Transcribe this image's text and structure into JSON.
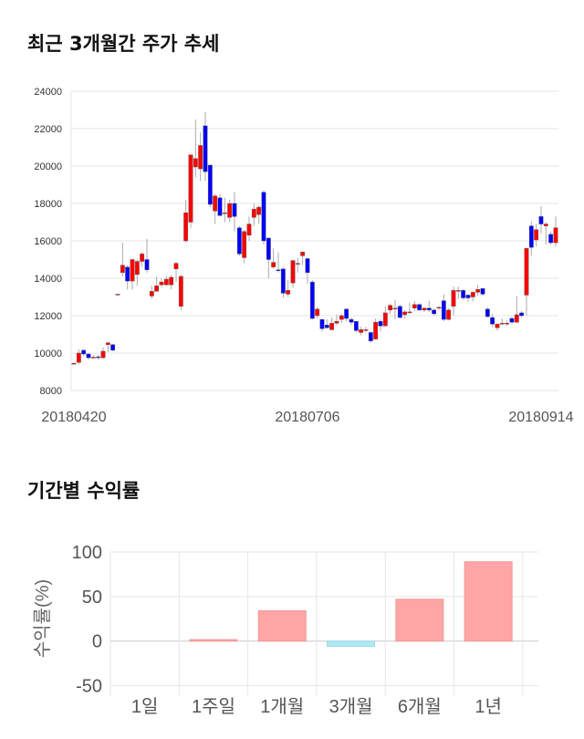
{
  "chart_data": [
    {
      "type": "candlestick",
      "title": "최근 3개월간 주가 추세",
      "ylim": [
        8000,
        24000
      ],
      "yticks": [
        "24000",
        "22000",
        "20000",
        "18000",
        "16000",
        "14000",
        "12000",
        "10000",
        "8000"
      ],
      "xticks": [
        {
          "index": 0,
          "label": "20180420"
        },
        {
          "index": 48,
          "label": "20180706"
        },
        {
          "index": 96,
          "label": "20180914"
        }
      ],
      "colors": {
        "up": "#ff0000",
        "down": "#0000ff",
        "wick": "#aaaaaa",
        "grid": "#e6e6e6"
      },
      "candles_ohlc_note": "each entry: [open, close, high, low]",
      "candles": [
        [
          9450,
          9450,
          9500,
          9400
        ],
        [
          9500,
          10000,
          10200,
          9400
        ],
        [
          10150,
          9950,
          10200,
          9850
        ],
        [
          9950,
          9750,
          10000,
          9650
        ],
        [
          9780,
          9780,
          9900,
          9700
        ],
        [
          9800,
          9780,
          9900,
          9650
        ],
        [
          9750,
          10100,
          10300,
          9700
        ],
        [
          10450,
          10550,
          10600,
          10050
        ],
        [
          10450,
          10150,
          10500,
          10100
        ],
        [
          13150,
          13150,
          13150,
          13150
        ],
        [
          14300,
          14700,
          15900,
          14100
        ],
        [
          14600,
          13850,
          14700,
          13400
        ],
        [
          13850,
          15000,
          15050,
          13400
        ],
        [
          14200,
          14900,
          15000,
          13600
        ],
        [
          14900,
          15300,
          15400,
          14600
        ],
        [
          15000,
          14450,
          16100,
          14300
        ],
        [
          13050,
          13300,
          13600,
          12900
        ],
        [
          13300,
          13600,
          14100,
          13300
        ],
        [
          13650,
          13800,
          14000,
          13500
        ],
        [
          13650,
          13950,
          14100,
          13600
        ],
        [
          13650,
          14050,
          14200,
          13400
        ],
        [
          14500,
          14800,
          14900,
          13800
        ],
        [
          12500,
          14100,
          14200,
          12300
        ],
        [
          16000,
          17500,
          18200,
          15900
        ],
        [
          17000,
          20600,
          20600,
          16700
        ],
        [
          19950,
          20400,
          22500,
          19400
        ],
        [
          19850,
          21100,
          21800,
          19200
        ],
        [
          22150,
          19700,
          22900,
          19200
        ],
        [
          20050,
          17950,
          20050,
          17800
        ],
        [
          17600,
          18400,
          18500,
          16900
        ],
        [
          18300,
          17350,
          18500,
          17300
        ],
        [
          17500,
          17500,
          18300,
          17000
        ],
        [
          17250,
          18000,
          18200,
          17000
        ],
        [
          18000,
          17300,
          18600,
          16500
        ],
        [
          16700,
          15300,
          16800,
          15200
        ],
        [
          15100,
          16500,
          16600,
          14800
        ],
        [
          16300,
          16900,
          17300,
          16000
        ],
        [
          17250,
          17700,
          18000,
          16800
        ],
        [
          17400,
          17800,
          17900,
          16900
        ],
        [
          18600,
          16000,
          18700,
          15800
        ],
        [
          16150,
          15000,
          16150,
          14000
        ],
        [
          14600,
          14850,
          15600,
          14500
        ],
        [
          14450,
          14400,
          15400,
          14300
        ],
        [
          14500,
          13200,
          14600,
          12950
        ],
        [
          13150,
          13350,
          13900,
          13000
        ],
        [
          13750,
          14950,
          14950,
          13500
        ],
        [
          14800,
          14800,
          15100,
          14300
        ],
        [
          15200,
          15400,
          15450,
          14700
        ],
        [
          15050,
          14300,
          15100,
          13700
        ],
        [
          13800,
          11850,
          13900,
          11800
        ],
        [
          12000,
          12350,
          12450,
          11850
        ],
        [
          11800,
          11300,
          11800,
          11150
        ],
        [
          11500,
          11350,
          11800,
          11300
        ],
        [
          11250,
          11600,
          11900,
          11200
        ],
        [
          11600,
          11700,
          12050,
          11500
        ],
        [
          11800,
          12000,
          12100,
          11600
        ],
        [
          12350,
          11850,
          12400,
          11700
        ],
        [
          11800,
          11650,
          11900,
          11500
        ],
        [
          11700,
          11200,
          11700,
          11100
        ],
        [
          11100,
          11250,
          11400,
          10950
        ],
        [
          11250,
          11250,
          11400,
          11100
        ],
        [
          11100,
          10650,
          11150,
          10550
        ],
        [
          10750,
          11650,
          11850,
          10700
        ],
        [
          11700,
          11450,
          11800,
          11150
        ],
        [
          11450,
          12150,
          12500,
          11450
        ],
        [
          12300,
          12550,
          12650,
          12100
        ],
        [
          12350,
          12400,
          12850,
          11800
        ],
        [
          12500,
          11900,
          12600,
          11850
        ],
        [
          12050,
          12200,
          12300,
          11850
        ],
        [
          12200,
          12200,
          12700,
          12100
        ],
        [
          12400,
          12600,
          12800,
          12250
        ],
        [
          12600,
          12300,
          12650,
          12250
        ],
        [
          12300,
          12400,
          12450,
          12200
        ],
        [
          12400,
          12300,
          12800,
          12200
        ],
        [
          12300,
          12100,
          12400,
          12000
        ],
        [
          12450,
          12450,
          12500,
          12300
        ],
        [
          12800,
          11800,
          13150,
          11700
        ],
        [
          11800,
          12300,
          12400,
          11750
        ],
        [
          12500,
          13350,
          13550,
          12000
        ],
        [
          13300,
          13350,
          13550,
          12900
        ],
        [
          13350,
          12950,
          13400,
          12850
        ],
        [
          13100,
          12950,
          13150,
          12750
        ],
        [
          13000,
          13250,
          13300,
          12750
        ],
        [
          13250,
          13400,
          13650,
          13050
        ],
        [
          13450,
          13150,
          13500,
          13050
        ],
        [
          12350,
          11950,
          12450,
          11900
        ],
        [
          11900,
          11550,
          12100,
          11400
        ],
        [
          11350,
          11550,
          11600,
          11200
        ],
        [
          11600,
          11600,
          11850,
          11500
        ],
        [
          11550,
          11600,
          11750,
          11450
        ],
        [
          11850,
          11650,
          11950,
          11550
        ],
        [
          11650,
          12050,
          13050,
          11600
        ],
        [
          12150,
          12000,
          12250,
          11900
        ],
        [
          13100,
          15600,
          15600,
          12000
        ],
        [
          16800,
          15650,
          17050,
          15200
        ],
        [
          16050,
          16600,
          16900,
          15700
        ],
        [
          17300,
          16900,
          17850,
          16400
        ],
        [
          16800,
          16900,
          17000,
          15800
        ],
        [
          16350,
          15900,
          16500,
          15800
        ],
        [
          15900,
          16700,
          17300,
          15700
        ]
      ]
    },
    {
      "type": "bar",
      "title": "기간별 수익률",
      "ylabel": "수익률(%)",
      "ylim": [
        -55,
        100
      ],
      "yticks": [
        "100",
        "50",
        "0",
        "-50"
      ],
      "categories": [
        "1일",
        "1주일",
        "1개월",
        "3개월",
        "6개월",
        "1년"
      ],
      "values": [
        0,
        1.7,
        34,
        -6,
        47,
        89
      ],
      "colors": {
        "positive": "#ffa5a5",
        "negative": "#aee9f1"
      }
    }
  ]
}
